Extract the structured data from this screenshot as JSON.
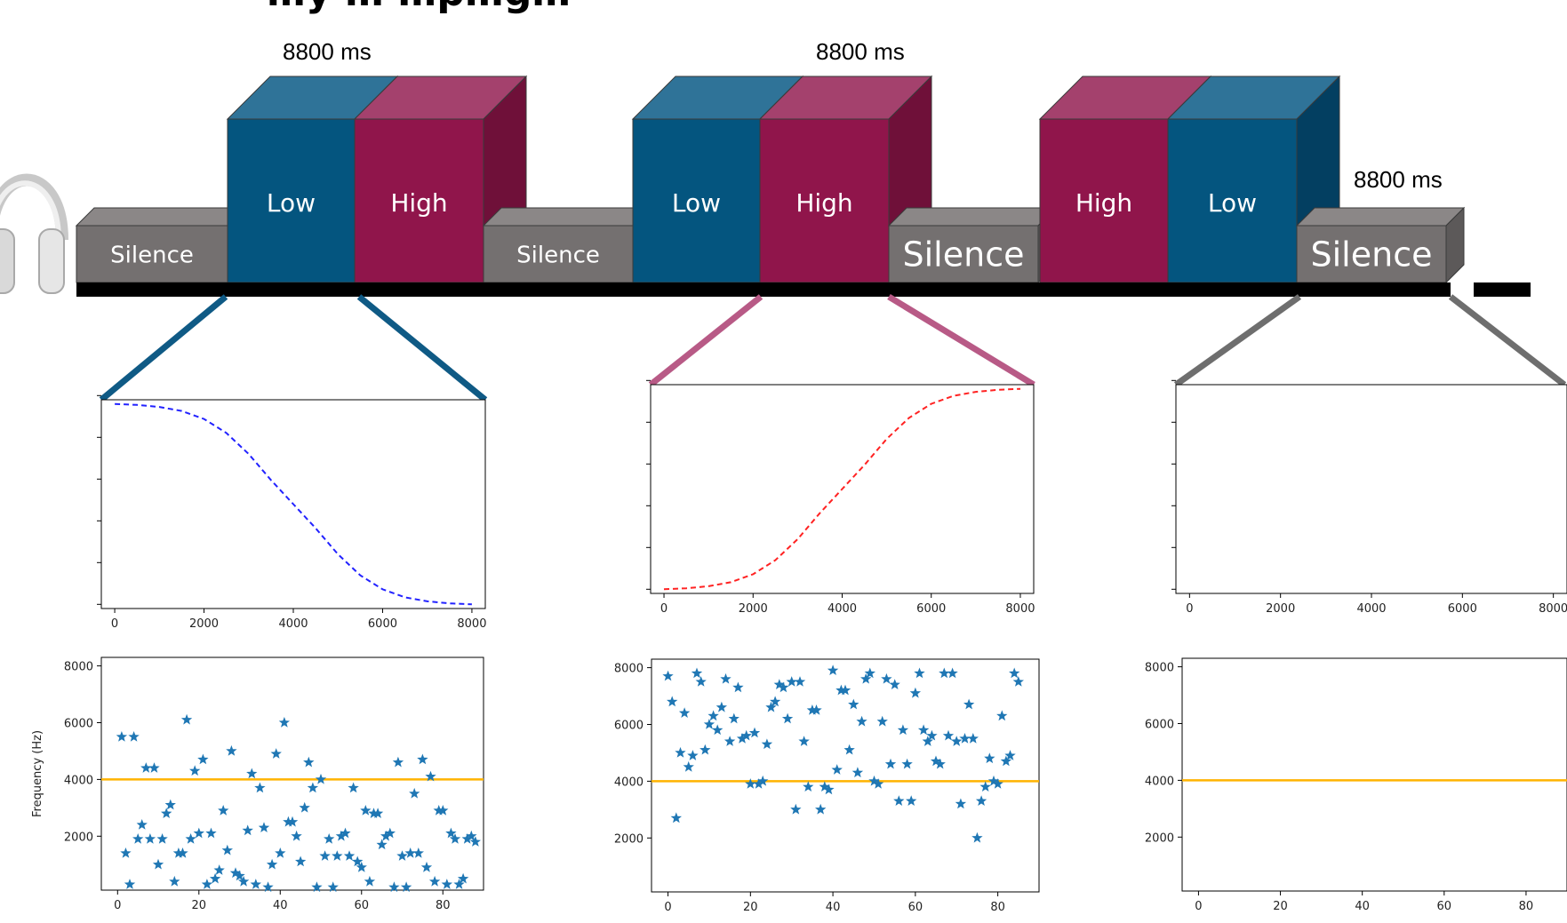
{
  "title_visible": "…y … …p…g…",
  "durations": [
    "8800 ms",
    "8800 ms",
    "8800 ms"
  ],
  "blocks": [
    {
      "label": "Silence",
      "kind": "silence"
    },
    {
      "label": "Low",
      "kind": "low"
    },
    {
      "label": "High",
      "kind": "high"
    },
    {
      "label": "Silence",
      "kind": "silence"
    },
    {
      "label": "Low",
      "kind": "low"
    },
    {
      "label": "High",
      "kind": "high"
    },
    {
      "label": "Silence",
      "kind": "silence"
    },
    {
      "label": "High",
      "kind": "high"
    },
    {
      "label": "Low",
      "kind": "low"
    },
    {
      "label": "Silence",
      "kind": "silence"
    }
  ],
  "colors": {
    "low": "#04557f",
    "low_top": "#2f7398",
    "low_side": "#033f61",
    "high": "#90154b",
    "high_top": "#a4416d",
    "high_side": "#6f1039",
    "silence": "#747070",
    "silence_top": "#8b8787",
    "silence_side": "#5c5959",
    "timeline": "#000000",
    "connector_low": "#0f5a85",
    "connector_high": "#b85a86",
    "connector_silence": "#6e6e6e",
    "line_low": "#2222ff",
    "line_high": "#ff2222",
    "star": "#1f77b4",
    "threshold": "#ffb300"
  },
  "icons": [
    "headphones-icon"
  ],
  "chart_data": [
    {
      "type": "line",
      "panel": "low-sweep",
      "xticks": [
        0,
        2000,
        4000,
        6000,
        8000
      ],
      "xlim": [
        -300,
        8300
      ],
      "ylim": [
        0,
        1
      ],
      "series": [
        {
          "style": "dashed",
          "color": "#2222ff",
          "shape": "decreasing-sigmoid",
          "x": [
            0,
            500,
            1000,
            1500,
            2000,
            2500,
            3000,
            3500,
            4000,
            4500,
            5000,
            5500,
            6000,
            6500,
            7000,
            7500,
            8000
          ],
          "y": [
            1.0,
            0.995,
            0.985,
            0.965,
            0.925,
            0.855,
            0.75,
            0.62,
            0.5,
            0.38,
            0.25,
            0.145,
            0.075,
            0.035,
            0.015,
            0.005,
            0.0
          ]
        }
      ]
    },
    {
      "type": "line",
      "panel": "high-sweep",
      "xticks": [
        0,
        2000,
        4000,
        6000,
        8000
      ],
      "xlim": [
        -300,
        8300
      ],
      "ylim": [
        0,
        1
      ],
      "series": [
        {
          "style": "dashed",
          "color": "#ff2222",
          "shape": "increasing-sigmoid",
          "x": [
            0,
            500,
            1000,
            1500,
            2000,
            2500,
            3000,
            3500,
            4000,
            4500,
            5000,
            5500,
            6000,
            6500,
            7000,
            7500,
            8000
          ],
          "y": [
            0.0,
            0.005,
            0.015,
            0.035,
            0.075,
            0.145,
            0.25,
            0.38,
            0.5,
            0.62,
            0.75,
            0.855,
            0.925,
            0.965,
            0.985,
            0.995,
            1.0
          ]
        }
      ]
    },
    {
      "type": "line",
      "panel": "silence-sweep",
      "xticks": [
        0,
        2000,
        4000,
        6000,
        8000
      ],
      "xlim": [
        -300,
        8300
      ],
      "ylim": [
        0,
        1
      ],
      "series": []
    },
    {
      "type": "scatter",
      "panel": "low-tones",
      "ylabel": "Frequency (Hz)",
      "xticks": [
        0,
        20,
        40,
        60,
        80
      ],
      "yticks": [
        2000,
        4000,
        6000,
        8000
      ],
      "xlim": [
        -4,
        90
      ],
      "ylim": [
        100,
        8300
      ],
      "threshold": 4000,
      "points": [
        [
          1,
          5500
        ],
        [
          2,
          1400
        ],
        [
          3,
          300
        ],
        [
          4,
          5500
        ],
        [
          5,
          1900
        ],
        [
          6,
          2400
        ],
        [
          7,
          4400
        ],
        [
          8,
          1900
        ],
        [
          9,
          4400
        ],
        [
          10,
          1000
        ],
        [
          11,
          1900
        ],
        [
          12,
          2800
        ],
        [
          13,
          3100
        ],
        [
          14,
          400
        ],
        [
          15,
          1400
        ],
        [
          16,
          1400
        ],
        [
          17,
          6100
        ],
        [
          18,
          1900
        ],
        [
          19,
          4300
        ],
        [
          20,
          2100
        ],
        [
          21,
          4700
        ],
        [
          22,
          300
        ],
        [
          23,
          2100
        ],
        [
          24,
          500
        ],
        [
          25,
          800
        ],
        [
          26,
          2900
        ],
        [
          27,
          1500
        ],
        [
          28,
          5000
        ],
        [
          29,
          700
        ],
        [
          30,
          600
        ],
        [
          31,
          400
        ],
        [
          32,
          2200
        ],
        [
          33,
          4200
        ],
        [
          34,
          300
        ],
        [
          35,
          3700
        ],
        [
          36,
          2300
        ],
        [
          37,
          200
        ],
        [
          38,
          1000
        ],
        [
          39,
          4900
        ],
        [
          40,
          1400
        ],
        [
          41,
          6000
        ],
        [
          42,
          2500
        ],
        [
          43,
          2500
        ],
        [
          44,
          2000
        ],
        [
          45,
          1100
        ],
        [
          46,
          3000
        ],
        [
          47,
          4600
        ],
        [
          48,
          3700
        ],
        [
          49,
          200
        ],
        [
          50,
          4000
        ],
        [
          51,
          1300
        ],
        [
          52,
          1900
        ],
        [
          53,
          200
        ],
        [
          54,
          1300
        ],
        [
          55,
          2000
        ],
        [
          56,
          2100
        ],
        [
          57,
          1300
        ],
        [
          58,
          3700
        ],
        [
          59,
          1100
        ],
        [
          60,
          900
        ],
        [
          61,
          2900
        ],
        [
          62,
          400
        ],
        [
          63,
          2800
        ],
        [
          64,
          2800
        ],
        [
          65,
          1700
        ],
        [
          66,
          2000
        ],
        [
          67,
          2100
        ],
        [
          68,
          200
        ],
        [
          69,
          4600
        ],
        [
          70,
          1300
        ],
        [
          71,
          200
        ],
        [
          72,
          1400
        ],
        [
          73,
          3500
        ],
        [
          74,
          1400
        ],
        [
          75,
          4700
        ],
        [
          76,
          900
        ],
        [
          77,
          4100
        ],
        [
          78,
          400
        ],
        [
          79,
          2900
        ],
        [
          80,
          2900
        ],
        [
          81,
          300
        ],
        [
          82,
          2100
        ],
        [
          83,
          1900
        ],
        [
          84,
          300
        ],
        [
          85,
          500
        ],
        [
          86,
          1900
        ],
        [
          87,
          2000
        ],
        [
          88,
          1800
        ]
      ]
    },
    {
      "type": "scatter",
      "panel": "high-tones",
      "xticks": [
        0,
        20,
        40,
        60,
        80
      ],
      "yticks": [
        2000,
        4000,
        6000,
        8000
      ],
      "xlim": [
        -4,
        90
      ],
      "ylim": [
        100,
        8300
      ],
      "threshold": 4000,
      "points": [
        [
          0,
          7700
        ],
        [
          1,
          6800
        ],
        [
          2,
          2700
        ],
        [
          3,
          5000
        ],
        [
          4,
          6400
        ],
        [
          5,
          4500
        ],
        [
          6,
          4900
        ],
        [
          7,
          7800
        ],
        [
          8,
          7500
        ],
        [
          9,
          5100
        ],
        [
          10,
          6000
        ],
        [
          11,
          6300
        ],
        [
          12,
          5800
        ],
        [
          13,
          6600
        ],
        [
          14,
          7600
        ],
        [
          15,
          5400
        ],
        [
          16,
          6200
        ],
        [
          17,
          7300
        ],
        [
          18,
          5500
        ],
        [
          19,
          5600
        ],
        [
          20,
          3900
        ],
        [
          21,
          5700
        ],
        [
          22,
          3900
        ],
        [
          23,
          4000
        ],
        [
          24,
          5300
        ],
        [
          25,
          6600
        ],
        [
          26,
          6800
        ],
        [
          27,
          7400
        ],
        [
          28,
          7300
        ],
        [
          29,
          6200
        ],
        [
          30,
          7500
        ],
        [
          31,
          3000
        ],
        [
          32,
          7500
        ],
        [
          33,
          5400
        ],
        [
          34,
          3800
        ],
        [
          35,
          6500
        ],
        [
          36,
          6500
        ],
        [
          37,
          3000
        ],
        [
          38,
          3800
        ],
        [
          39,
          3700
        ],
        [
          40,
          7900
        ],
        [
          41,
          4400
        ],
        [
          42,
          7200
        ],
        [
          43,
          7200
        ],
        [
          44,
          5100
        ],
        [
          45,
          6700
        ],
        [
          46,
          4300
        ],
        [
          47,
          6100
        ],
        [
          48,
          7600
        ],
        [
          49,
          7800
        ],
        [
          50,
          4000
        ],
        [
          51,
          3900
        ],
        [
          52,
          6100
        ],
        [
          53,
          7600
        ],
        [
          54,
          4600
        ],
        [
          55,
          7400
        ],
        [
          56,
          3300
        ],
        [
          57,
          5800
        ],
        [
          58,
          4600
        ],
        [
          59,
          3300
        ],
        [
          60,
          7100
        ],
        [
          61,
          7800
        ],
        [
          62,
          5800
        ],
        [
          63,
          5400
        ],
        [
          64,
          5600
        ],
        [
          65,
          4700
        ],
        [
          66,
          4600
        ],
        [
          67,
          7800
        ],
        [
          68,
          5600
        ],
        [
          69,
          7800
        ],
        [
          70,
          5400
        ],
        [
          71,
          3200
        ],
        [
          72,
          5500
        ],
        [
          73,
          6700
        ],
        [
          74,
          5500
        ],
        [
          75,
          2000
        ],
        [
          76,
          3300
        ],
        [
          77,
          3800
        ],
        [
          78,
          4800
        ],
        [
          79,
          4000
        ],
        [
          80,
          3900
        ],
        [
          81,
          6300
        ],
        [
          82,
          4700
        ],
        [
          83,
          4900
        ],
        [
          84,
          7800
        ],
        [
          85,
          7500
        ]
      ]
    },
    {
      "type": "scatter",
      "panel": "silence-tones",
      "xticks": [
        0,
        20,
        40,
        60,
        80
      ],
      "yticks": [
        2000,
        4000,
        6000,
        8000
      ],
      "xlim": [
        -4,
        90
      ],
      "ylim": [
        100,
        8300
      ],
      "threshold": 4000,
      "points": []
    }
  ]
}
